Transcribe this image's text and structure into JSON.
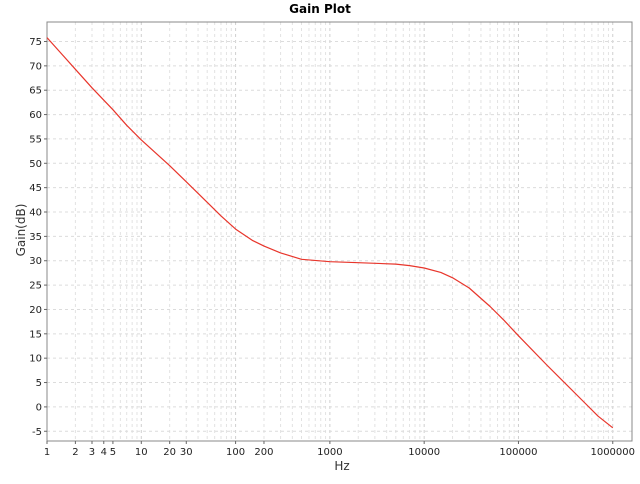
{
  "chart_data": {
    "type": "line",
    "title": "Gain Plot",
    "xlabel": "Hz",
    "ylabel": "Gain(dB)",
    "x_scale": "log",
    "xlim": [
      1,
      1600000
    ],
    "ylim": [
      -7,
      79
    ],
    "grid": true,
    "x_tick_labels": [
      "1",
      "2",
      "3",
      "4",
      "5",
      "10",
      "20",
      "30",
      "100",
      "200",
      "1000",
      "10000",
      "100000",
      "1000000"
    ],
    "y_tick_labels": [
      "-5",
      "0",
      "5",
      "10",
      "15",
      "20",
      "25",
      "30",
      "35",
      "40",
      "45",
      "50",
      "55",
      "60",
      "65",
      "70",
      "75"
    ],
    "series": [
      {
        "color": "#e8352b",
        "x": [
          1,
          1.5,
          2,
          3,
          5,
          7,
          10,
          20,
          30,
          50,
          70,
          100,
          150,
          200,
          300,
          500,
          1000,
          2000,
          5000,
          7000,
          10000,
          15000,
          20000,
          30000,
          50000,
          70000,
          100000,
          200000,
          500000,
          700000,
          1000000
        ],
        "y": [
          75.8,
          72,
          69.3,
          65.5,
          61,
          57.8,
          54.8,
          49.5,
          46.2,
          42,
          39.2,
          36.5,
          34.2,
          33,
          31.6,
          30.3,
          29.8,
          29.6,
          29.3,
          29,
          28.5,
          27.6,
          26.5,
          24.4,
          20.6,
          17.8,
          14.6,
          8.6,
          0.9,
          -1.9,
          -4.3
        ]
      }
    ]
  }
}
